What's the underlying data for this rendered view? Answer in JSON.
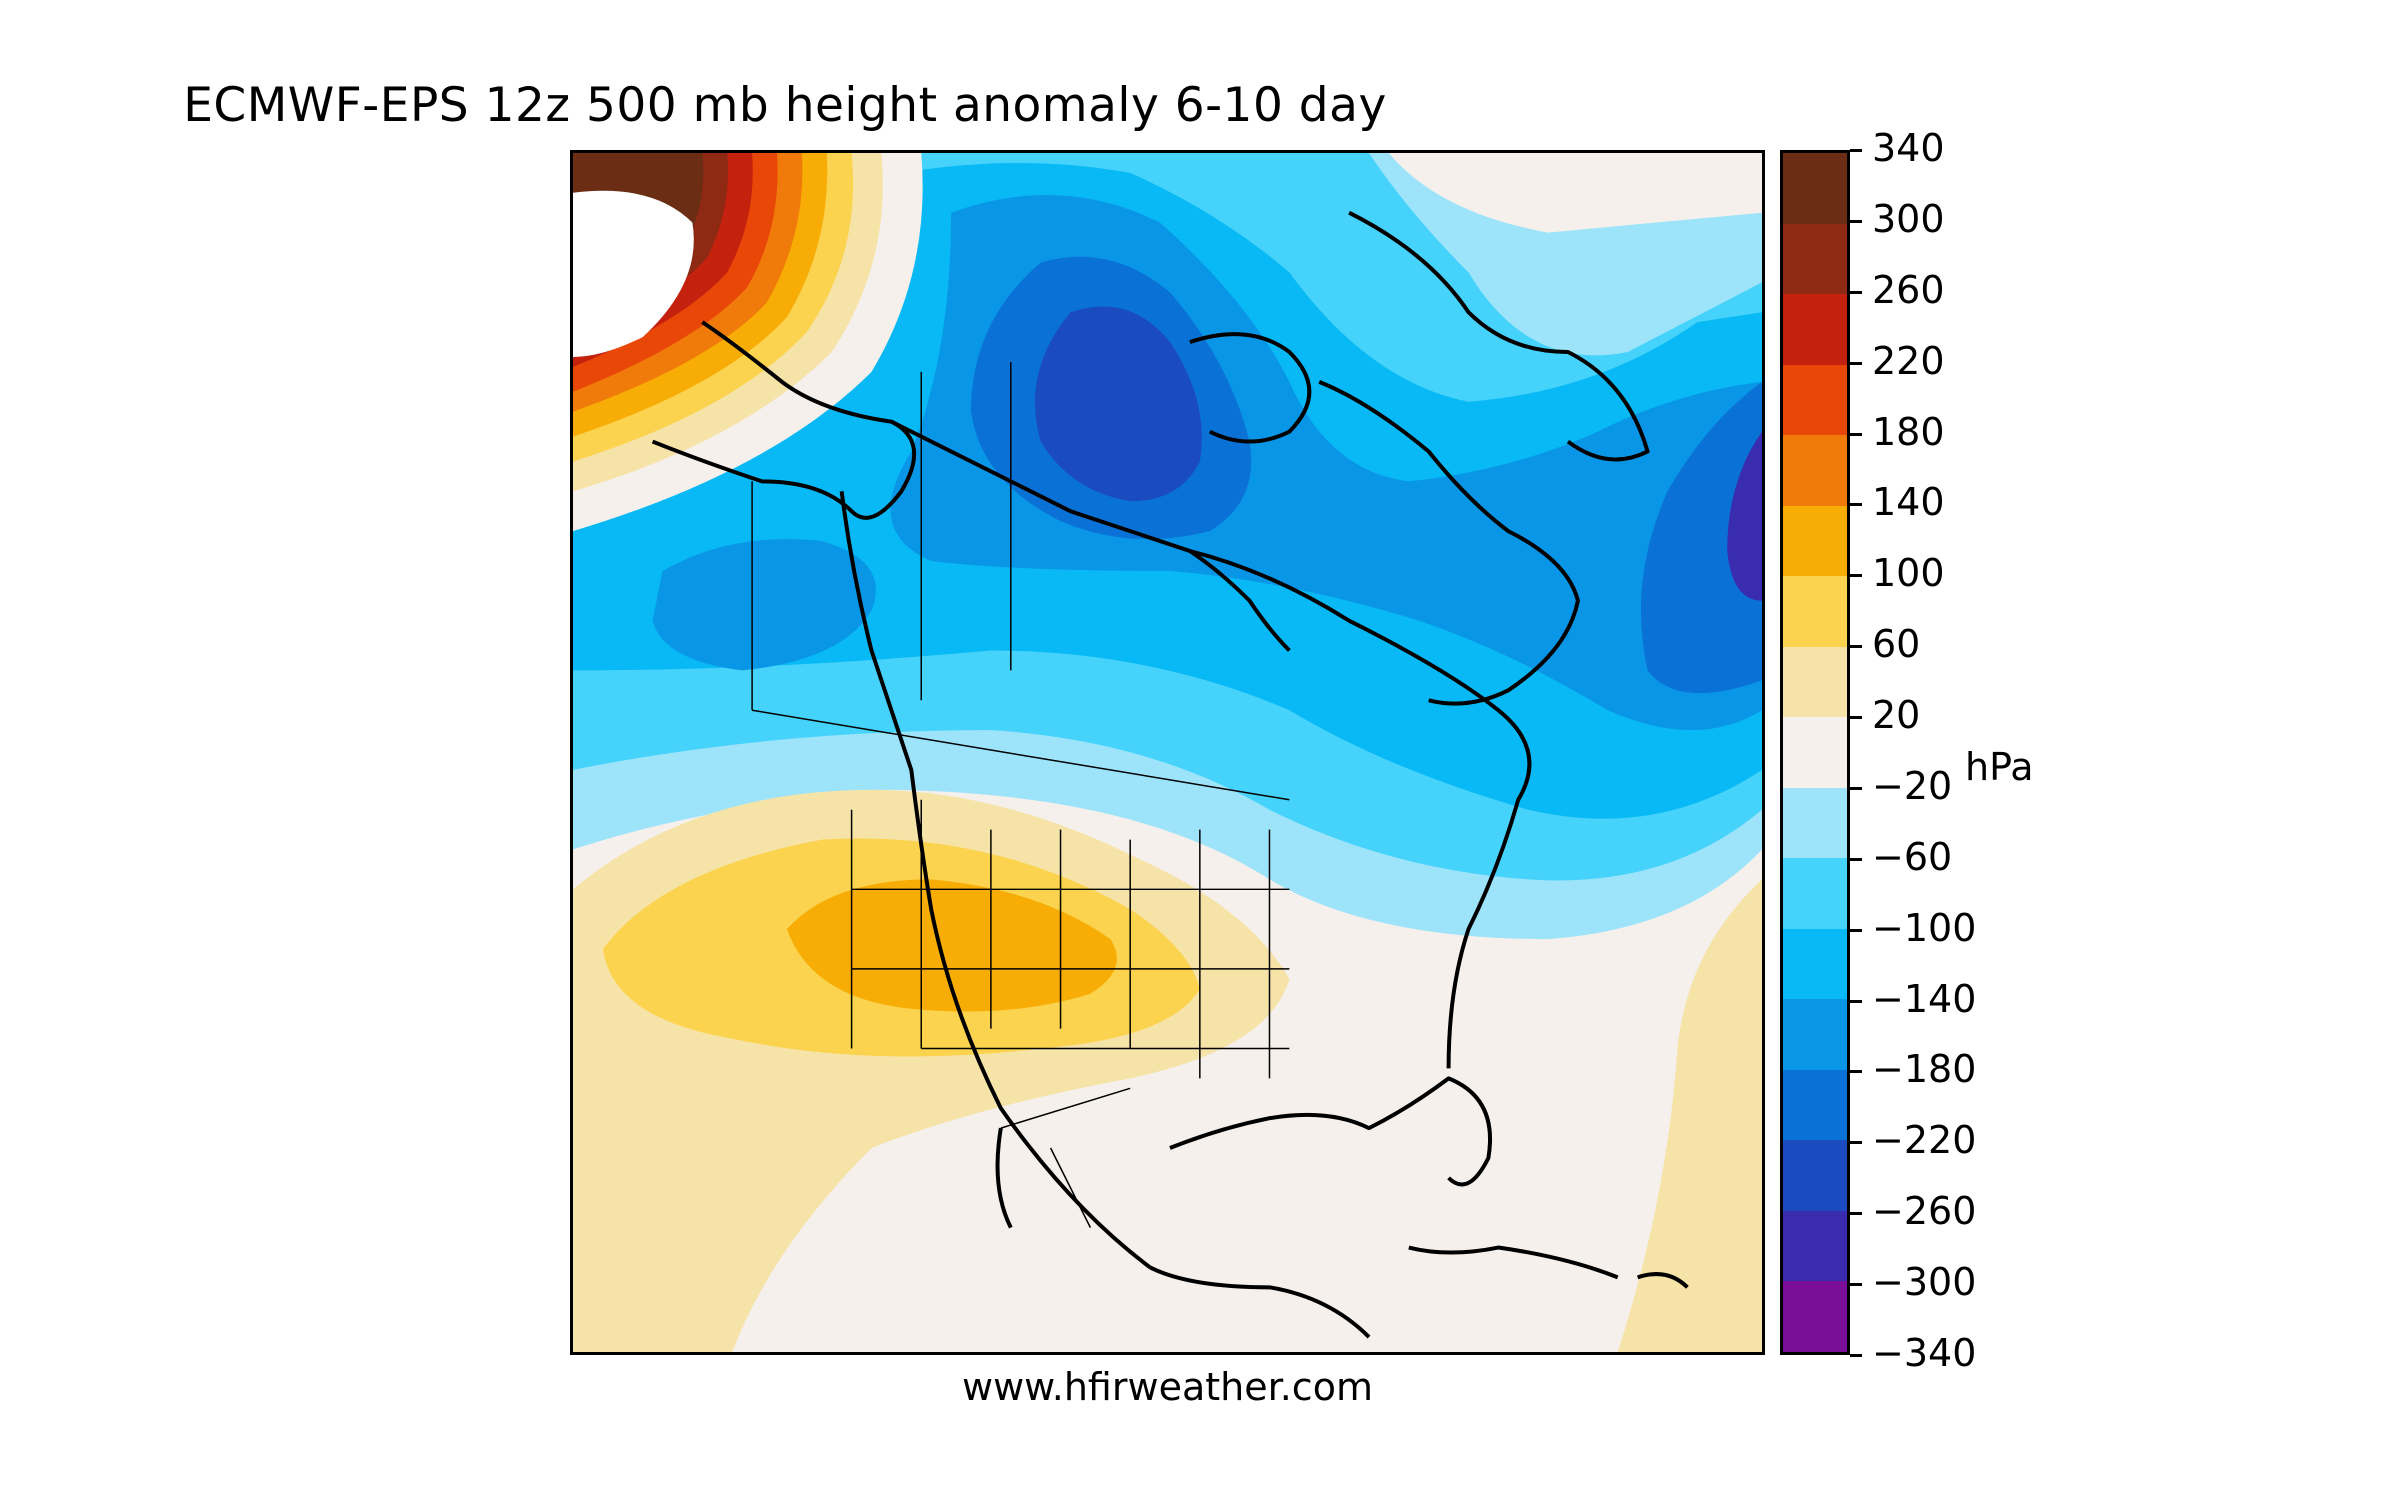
{
  "title": "ECMWF-EPS 12z 500 mb height anomaly 6-10 day",
  "footer": "www.hfirweather.com",
  "colorbar": {
    "unit": "hPa",
    "tick_labels": [
      "340",
      "300",
      "260",
      "220",
      "180",
      "140",
      "100",
      "60",
      "20",
      "−20",
      "−60",
      "−100",
      "−140",
      "−180",
      "−220",
      "−260",
      "−300",
      "−340"
    ],
    "colors": [
      "#6b2e14",
      "#8e2a14",
      "#c4220f",
      "#e84708",
      "#f07b0a",
      "#f7ad05",
      "#fbd34e",
      "#f6e3a7",
      "#f5f0eb",
      "#9de4fb",
      "#46d3fb",
      "#08b9f5",
      "#0a96e6",
      "#0a72d6",
      "#1a4cc0",
      "#3a2cae",
      "#7a0e96"
    ]
  },
  "map": {
    "region": "North America",
    "features": [
      "positive-anomaly-alaska",
      "positive-anomaly-southwest-us",
      "negative-anomaly-canada",
      "negative-anomaly-north-atlantic",
      "coastlines",
      "state-borders"
    ]
  }
}
